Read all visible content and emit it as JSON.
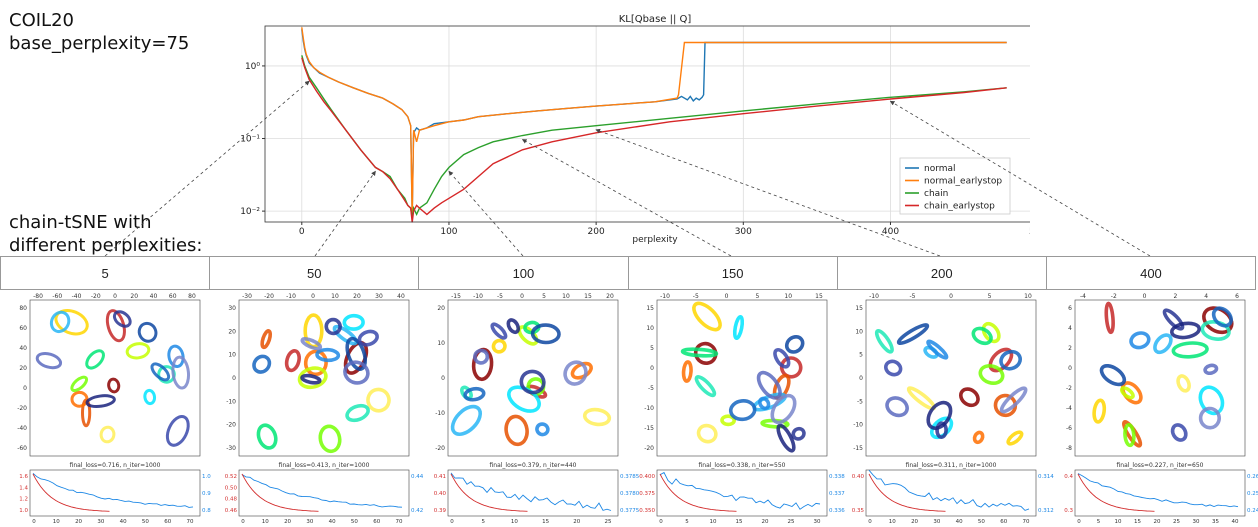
{
  "header": {
    "dataset_lines": [
      "COIL20",
      "base_perplexity=75"
    ],
    "chain_lines": [
      "chain-tSNE with",
      "different perplexities:"
    ]
  },
  "perplexity_columns": [
    "5",
    "50",
    "100",
    "150",
    "200",
    "400"
  ],
  "chart_data": [
    {
      "type": "line",
      "title": "KL[Qbase || Q]",
      "xlabel": "perplexity",
      "ylabel": "",
      "xlim": [
        -25,
        505
      ],
      "ylim_log10": [
        -2.15,
        0.55
      ],
      "yscale": "log",
      "xticks": [
        0,
        100,
        200,
        300,
        400,
        500
      ],
      "yticks": [
        {
          "value": 0.01,
          "label": "10⁻²"
        },
        {
          "value": 0.1,
          "label": "10⁻¹"
        },
        {
          "value": 1,
          "label": "10⁰"
        }
      ],
      "grid": true,
      "legend_position": "lower-right",
      "series": [
        {
          "name": "normal",
          "color": "#1f77b4",
          "x": [
            0,
            1,
            2,
            3,
            5,
            8,
            12,
            18,
            25,
            35,
            45,
            55,
            62,
            68,
            72,
            74,
            75,
            76,
            78,
            80,
            85,
            90,
            100,
            110,
            120,
            140,
            160,
            180,
            200,
            220,
            240,
            255,
            258,
            262,
            264,
            266,
            268,
            270,
            272,
            273,
            274,
            350,
            400,
            479
          ],
          "y": [
            3.2,
            2.2,
            1.7,
            1.4,
            1.1,
            0.95,
            0.8,
            0.7,
            0.6,
            0.5,
            0.42,
            0.36,
            0.3,
            0.25,
            0.2,
            0.15,
            0.009,
            0.12,
            0.14,
            0.13,
            0.14,
            0.16,
            0.17,
            0.18,
            0.2,
            0.22,
            0.24,
            0.26,
            0.28,
            0.3,
            0.32,
            0.35,
            0.38,
            0.34,
            0.38,
            0.33,
            0.36,
            0.34,
            0.37,
            0.4,
            2.1,
            2.1,
            2.1,
            2.1
          ]
        },
        {
          "name": "normal_earlystop",
          "color": "#ff7f0e",
          "x": [
            0,
            1,
            2,
            3,
            5,
            8,
            12,
            18,
            25,
            35,
            45,
            55,
            62,
            68,
            72,
            74,
            75,
            76,
            78,
            80,
            85,
            90,
            100,
            110,
            120,
            140,
            160,
            180,
            200,
            220,
            240,
            255,
            256,
            260,
            479
          ],
          "y": [
            3.4,
            2.4,
            1.8,
            1.45,
            1.15,
            0.95,
            0.82,
            0.7,
            0.6,
            0.5,
            0.42,
            0.36,
            0.3,
            0.25,
            0.2,
            0.15,
            0.0078,
            0.13,
            0.09,
            0.13,
            0.14,
            0.15,
            0.17,
            0.18,
            0.2,
            0.22,
            0.24,
            0.26,
            0.28,
            0.3,
            0.32,
            0.36,
            0.4,
            2.1,
            2.1
          ]
        },
        {
          "name": "chain",
          "color": "#2ca02c",
          "x": [
            0,
            2,
            5,
            10,
            15,
            20,
            30,
            40,
            50,
            55,
            60,
            65,
            70,
            72,
            74,
            75,
            76,
            78,
            80,
            85,
            90,
            95,
            100,
            110,
            120,
            130,
            150,
            170,
            200,
            250,
            300,
            350,
            400,
            450,
            479
          ],
          "y": [
            1.4,
            1.0,
            0.7,
            0.5,
            0.35,
            0.25,
            0.13,
            0.07,
            0.04,
            0.035,
            0.03,
            0.02,
            0.015,
            0.012,
            0.011,
            0.008,
            0.011,
            0.009,
            0.011,
            0.013,
            0.02,
            0.03,
            0.04,
            0.06,
            0.075,
            0.09,
            0.11,
            0.13,
            0.15,
            0.19,
            0.24,
            0.3,
            0.37,
            0.44,
            0.5
          ]
        },
        {
          "name": "chain_earlystop",
          "color": "#d62728",
          "x": [
            0,
            2,
            5,
            10,
            15,
            20,
            30,
            40,
            50,
            55,
            60,
            65,
            70,
            72,
            74,
            75,
            76,
            78,
            80,
            85,
            90,
            95,
            100,
            110,
            120,
            130,
            150,
            170,
            200,
            250,
            300,
            350,
            400,
            450,
            479
          ],
          "y": [
            1.3,
            0.95,
            0.65,
            0.45,
            0.32,
            0.24,
            0.13,
            0.07,
            0.04,
            0.035,
            0.028,
            0.02,
            0.014,
            0.012,
            0.011,
            0.007,
            0.01,
            0.012,
            0.011,
            0.009,
            0.011,
            0.013,
            0.015,
            0.02,
            0.03,
            0.045,
            0.07,
            0.09,
            0.12,
            0.17,
            0.22,
            0.28,
            0.35,
            0.43,
            0.5
          ]
        }
      ]
    },
    {
      "type": "scatter",
      "perplexity": "5",
      "xticks": [
        "-80",
        "-60",
        "-40",
        "-20",
        "0",
        "20",
        "40",
        "60",
        "80"
      ],
      "yticks": [
        "80",
        "60",
        "40",
        "20",
        "0",
        "-20",
        "-40",
        "-60"
      ],
      "loss_title": "final_loss=0.716, n_iter=1000",
      "loss_xticks": [
        "0",
        "10",
        "20",
        "30",
        "40",
        "50",
        "60",
        "70"
      ],
      "loss_left_ticks": [
        "1.6",
        "1.4",
        "1.2",
        "1.0"
      ],
      "loss_right_ticks": [
        "1.0",
        "0.9",
        "0.8"
      ]
    },
    {
      "type": "scatter",
      "perplexity": "50",
      "xticks": [
        "-30",
        "-20",
        "-10",
        "0",
        "10",
        "20",
        "30",
        "40"
      ],
      "yticks": [
        "30",
        "20",
        "10",
        "0",
        "-10",
        "-20",
        "-30"
      ],
      "loss_title": "final_loss=0.413, n_iter=1000",
      "loss_xticks": [
        "0",
        "10",
        "20",
        "30",
        "40",
        "50",
        "60",
        "70"
      ],
      "loss_left_ticks": [
        "0.52",
        "0.50",
        "0.48",
        "0.46"
      ],
      "loss_right_ticks": [
        "0.44",
        "0.42"
      ]
    },
    {
      "type": "scatter",
      "perplexity": "100",
      "xticks": [
        "-15",
        "-10",
        "-5",
        "0",
        "5",
        "10",
        "15",
        "20"
      ],
      "yticks": [
        "20",
        "10",
        "0",
        "-10",
        "-20"
      ],
      "loss_title": "final_loss=0.379, n_iter=440",
      "loss_xticks": [
        "0",
        "5",
        "10",
        "15",
        "20",
        "25"
      ],
      "loss_left_ticks": [
        "0.41",
        "0.40",
        "0.39"
      ],
      "loss_right_ticks": [
        "0.3785",
        "0.3780",
        "0.3775"
      ]
    },
    {
      "type": "scatter",
      "perplexity": "150",
      "xticks": [
        "-10",
        "-5",
        "0",
        "5",
        "10",
        "15"
      ],
      "yticks": [
        "15",
        "10",
        "5",
        "0",
        "-5",
        "-10",
        "-15",
        "-20"
      ],
      "loss_title": "final_loss=0.338, n_iter=550",
      "loss_xticks": [
        "0",
        "5",
        "10",
        "15",
        "20",
        "25",
        "30"
      ],
      "loss_left_ticks": [
        "0.400",
        "0.375",
        "0.350"
      ],
      "loss_right_ticks": [
        "0.338",
        "0.337",
        "0.336"
      ]
    },
    {
      "type": "scatter",
      "perplexity": "200",
      "xticks": [
        "-10",
        "-5",
        "0",
        "5",
        "10"
      ],
      "yticks": [
        "15",
        "10",
        "5",
        "0",
        "-5",
        "-10",
        "-15"
      ],
      "loss_title": "final_loss=0.311, n_iter=1000",
      "loss_xticks": [
        "0",
        "10",
        "20",
        "30",
        "40",
        "50",
        "60",
        "70"
      ],
      "loss_left_ticks": [
        "0.40",
        "0.35"
      ],
      "loss_right_ticks": [
        "0.314",
        "0.312"
      ]
    },
    {
      "type": "scatter",
      "perplexity": "400",
      "xticks": [
        "-4",
        "-2",
        "0",
        "2",
        "4",
        "6"
      ],
      "yticks": [
        "6",
        "4",
        "2",
        "0",
        "-2",
        "-4",
        "-6",
        "-8"
      ],
      "loss_title": "final_loss=0.227, n_iter=650",
      "loss_xticks": [
        "0",
        "5",
        "10",
        "15",
        "20",
        "25",
        "30",
        "35",
        "40"
      ],
      "loss_left_ticks": [
        "0.4",
        "0.3"
      ],
      "loss_right_ticks": [
        "0.26",
        "0.25",
        "0.24"
      ]
    }
  ]
}
